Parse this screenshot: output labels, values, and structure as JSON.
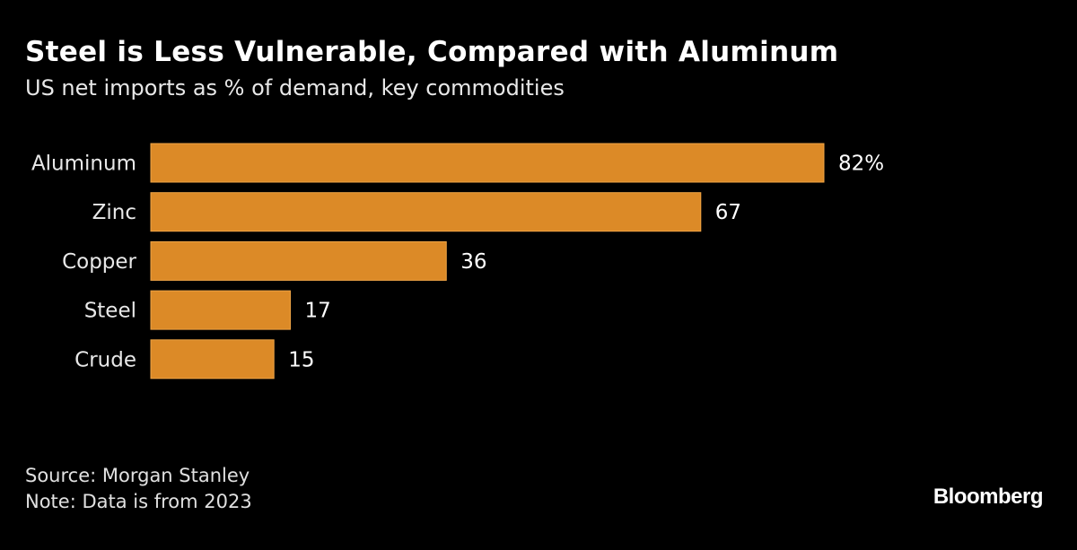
{
  "chart_data": {
    "type": "bar",
    "orientation": "horizontal",
    "title": "Steel is Less Vulnerable, Compared with Aluminum",
    "subtitle": "US net imports as % of demand, key commodities",
    "categories": [
      "Aluminum",
      "Zinc",
      "Copper",
      "Steel",
      "Crude"
    ],
    "values": [
      82,
      67,
      36,
      17,
      15
    ],
    "data_labels": [
      "82%",
      "67",
      "36",
      "17",
      "15"
    ],
    "xlim": [
      0,
      82
    ],
    "grid": false,
    "bar_color": "#dc8a27"
  },
  "footer": {
    "source": "Source: Morgan Stanley",
    "note": "Note: Data is from 2023",
    "logo": "Bloomberg"
  }
}
